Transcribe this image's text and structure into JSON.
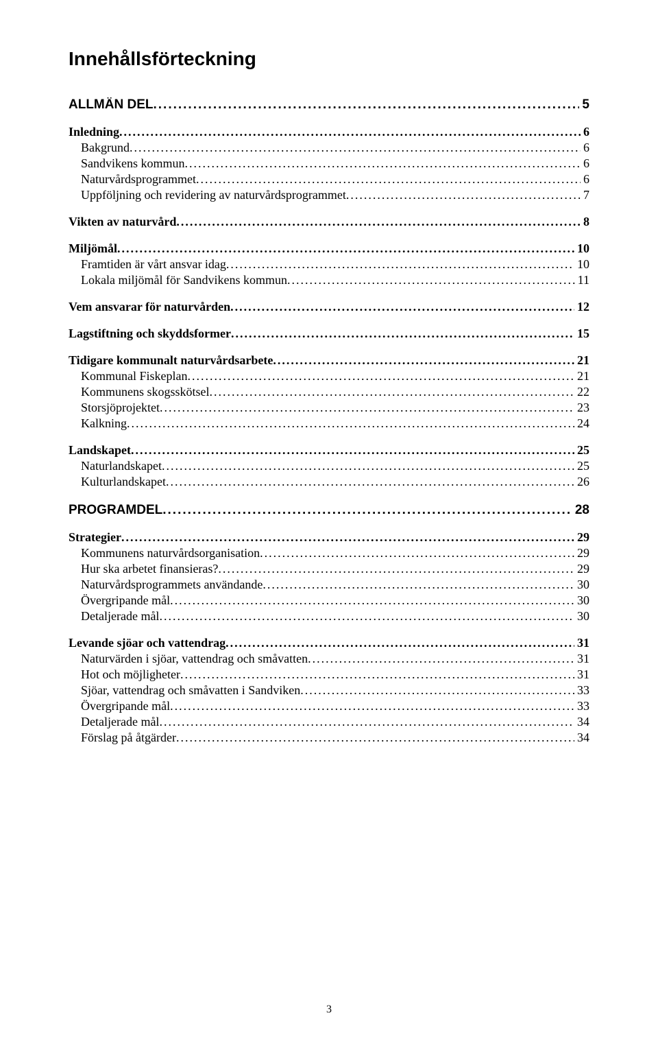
{
  "title": "Innehållsförteckning",
  "footer_page": "3",
  "toc": [
    {
      "level": 1,
      "label": "ALLMÄN DEL",
      "page": "5"
    },
    {
      "level": 2,
      "label": "Inledning",
      "page": "6"
    },
    {
      "level": 3,
      "label": "Bakgrund",
      "page": "6"
    },
    {
      "level": 3,
      "label": "Sandvikens kommun",
      "page": "6"
    },
    {
      "level": 3,
      "label": "Naturvårdsprogrammet",
      "page": "6"
    },
    {
      "level": 3,
      "label": "Uppföljning och revidering av naturvårdsprogrammet",
      "page": "7"
    },
    {
      "level": 2,
      "label": "Vikten av naturvård",
      "page": "8"
    },
    {
      "level": 2,
      "label": "Miljömål",
      "page": "10"
    },
    {
      "level": 3,
      "label": "Framtiden är vårt ansvar idag",
      "page": "10"
    },
    {
      "level": 3,
      "label": "Lokala miljömål för Sandvikens kommun",
      "page": "11"
    },
    {
      "level": 2,
      "label": "Vem ansvarar för naturvården",
      "page": "12"
    },
    {
      "level": 2,
      "label": "Lagstiftning och skyddsformer",
      "page": "15"
    },
    {
      "level": 2,
      "label": "Tidigare kommunalt naturvårdsarbete",
      "page": "21"
    },
    {
      "level": 3,
      "label": "Kommunal Fiskeplan",
      "page": "21"
    },
    {
      "level": 3,
      "label": "Kommunens skogsskötsel",
      "page": "22"
    },
    {
      "level": 3,
      "label": "Storsjöprojektet",
      "page": "23"
    },
    {
      "level": 3,
      "label": "Kalkning",
      "page": "24"
    },
    {
      "level": 2,
      "label": "Landskapet",
      "page": "25"
    },
    {
      "level": 3,
      "label": "Naturlandskapet",
      "page": "25"
    },
    {
      "level": 3,
      "label": "Kulturlandskapet",
      "page": "26"
    },
    {
      "level": 1,
      "label": "PROGRAMDEL",
      "page": "28"
    },
    {
      "level": 2,
      "label": "Strategier",
      "page": "29"
    },
    {
      "level": 3,
      "label": "Kommunens naturvårdsorganisation",
      "page": "29"
    },
    {
      "level": 3,
      "label": "Hur ska arbetet finansieras?",
      "page": "29"
    },
    {
      "level": 3,
      "label": "Naturvårdsprogrammets användande",
      "page": "30"
    },
    {
      "level": 3,
      "label": "Övergripande mål",
      "page": "30"
    },
    {
      "level": 3,
      "label": "Detaljerade mål",
      "page": "30"
    },
    {
      "level": 2,
      "label": "Levande sjöar och vattendrag",
      "page": "31"
    },
    {
      "level": 3,
      "label": "Naturvärden i sjöar, vattendrag och småvatten",
      "page": "31"
    },
    {
      "level": 3,
      "label": "Hot och möjligheter",
      "page": "31"
    },
    {
      "level": 3,
      "label": "Sjöar, vattendrag och småvatten i Sandviken",
      "page": "33"
    },
    {
      "level": 3,
      "label": "Övergripande mål",
      "page": "33"
    },
    {
      "level": 3,
      "label": "Detaljerade mål",
      "page": "34"
    },
    {
      "level": 3,
      "label": "Förslag på åtgärder",
      "page": "34"
    }
  ]
}
